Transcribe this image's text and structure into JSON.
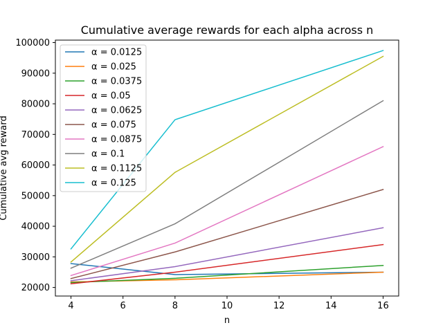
{
  "chart_data": {
    "type": "line",
    "title": "Cumulative average rewards for each alpha across n",
    "xlabel": "n",
    "ylabel": "Cumulative avg reward",
    "x": [
      4,
      8,
      16
    ],
    "xlim": [
      3.4,
      16.6
    ],
    "ylim": [
      17200,
      100800
    ],
    "xticks": [
      4,
      6,
      8,
      10,
      12,
      14,
      16
    ],
    "yticks": [
      20000,
      30000,
      40000,
      50000,
      60000,
      70000,
      80000,
      90000,
      100000
    ],
    "legend_position": "upper-left",
    "series": [
      {
        "name": "α = 0.0125",
        "color": "#1f77b4",
        "values": [
          27800,
          24200,
          25000
        ]
      },
      {
        "name": "α = 0.025",
        "color": "#ff7f0e",
        "values": [
          21800,
          22500,
          25000
        ]
      },
      {
        "name": "α = 0.0375",
        "color": "#2ca02c",
        "values": [
          21600,
          23000,
          27200
        ]
      },
      {
        "name": "α = 0.05",
        "color": "#d62728",
        "values": [
          21200,
          25000,
          34000
        ]
      },
      {
        "name": "α = 0.0625",
        "color": "#9467bd",
        "values": [
          22200,
          26800,
          39500
        ]
      },
      {
        "name": "α = 0.075",
        "color": "#8c564b",
        "values": [
          22900,
          31600,
          52000
        ]
      },
      {
        "name": "α = 0.0875",
        "color": "#e377c2",
        "values": [
          23900,
          34500,
          66000
        ]
      },
      {
        "name": "α = 0.1",
        "color": "#7f7f7f",
        "values": [
          26300,
          40800,
          81000
        ]
      },
      {
        "name": "α = 0.1125",
        "color": "#bcbd22",
        "values": [
          28300,
          57600,
          95500
        ]
      },
      {
        "name": "α = 0.125",
        "color": "#17becf",
        "values": [
          32600,
          74800,
          97400
        ]
      }
    ]
  }
}
